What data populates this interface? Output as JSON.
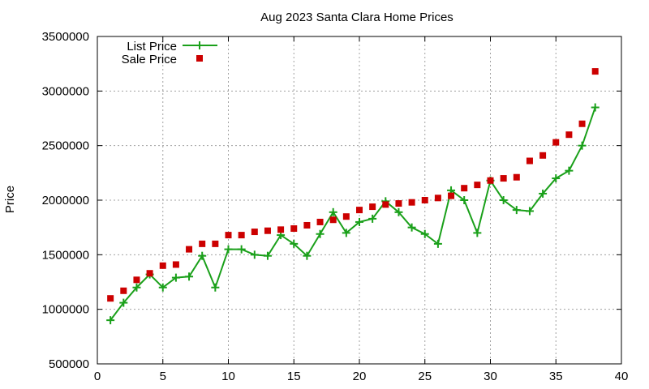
{
  "chart_data": {
    "type": "line",
    "title": "Aug 2023 Santa Clara Home Prices",
    "xlabel": "",
    "ylabel": "Price",
    "xlim": [
      0,
      40
    ],
    "ylim": [
      500000,
      3500000
    ],
    "xticks": [
      0,
      5,
      10,
      15,
      20,
      25,
      30,
      35,
      40
    ],
    "yticks": [
      500000,
      1000000,
      1500000,
      2000000,
      2500000,
      3000000,
      3500000
    ],
    "grid": true,
    "legend_position": "top-left",
    "series": [
      {
        "name": "List Price",
        "style": "line-with-plus-markers",
        "color": "#1aa01a",
        "x": [
          1,
          2,
          3,
          4,
          5,
          6,
          7,
          8,
          9,
          10,
          11,
          12,
          13,
          14,
          15,
          16,
          17,
          18,
          19,
          20,
          21,
          22,
          23,
          24,
          25,
          26,
          27,
          28,
          29,
          30,
          31,
          32,
          33,
          34,
          35,
          36,
          37,
          38
        ],
        "values": [
          900000,
          1060000,
          1200000,
          1320000,
          1200000,
          1290000,
          1300000,
          1490000,
          1200000,
          1550000,
          1550000,
          1500000,
          1490000,
          1680000,
          1600000,
          1490000,
          1690000,
          1890000,
          1700000,
          1800000,
          1830000,
          1990000,
          1890000,
          1750000,
          1690000,
          1600000,
          2090000,
          2000000,
          1700000,
          2180000,
          2000000,
          1910000,
          1900000,
          2060000,
          2200000,
          2270000,
          2500000,
          2850000
        ]
      },
      {
        "name": "Sale Price",
        "style": "square-markers",
        "color": "#cc0000",
        "x": [
          1,
          2,
          3,
          4,
          5,
          6,
          7,
          8,
          9,
          10,
          11,
          12,
          13,
          14,
          15,
          16,
          17,
          18,
          19,
          20,
          21,
          22,
          23,
          24,
          25,
          26,
          27,
          28,
          29,
          30,
          31,
          32,
          33,
          34,
          35,
          36,
          37,
          38
        ],
        "values": [
          1100000,
          1170000,
          1270000,
          1330000,
          1400000,
          1410000,
          1550000,
          1600000,
          1600000,
          1680000,
          1680000,
          1710000,
          1720000,
          1730000,
          1740000,
          1770000,
          1800000,
          1820000,
          1850000,
          1910000,
          1940000,
          1960000,
          1970000,
          1980000,
          2000000,
          2020000,
          2040000,
          2110000,
          2140000,
          2180000,
          2200000,
          2210000,
          2360000,
          2410000,
          2530000,
          2600000,
          2700000,
          3180000
        ]
      }
    ]
  }
}
